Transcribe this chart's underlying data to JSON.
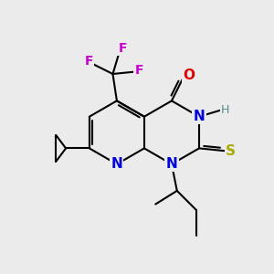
{
  "bg_color": "#ebebeb",
  "atom_colors": {
    "C": "#000000",
    "N": "#0000dd",
    "O": "#dd0000",
    "S": "#aaaa00",
    "F": "#cc00cc",
    "H": "#558888"
  },
  "figsize": [
    3.0,
    3.0
  ],
  "dpi": 100,
  "bond_lw": 1.5,
  "font_size": 10
}
